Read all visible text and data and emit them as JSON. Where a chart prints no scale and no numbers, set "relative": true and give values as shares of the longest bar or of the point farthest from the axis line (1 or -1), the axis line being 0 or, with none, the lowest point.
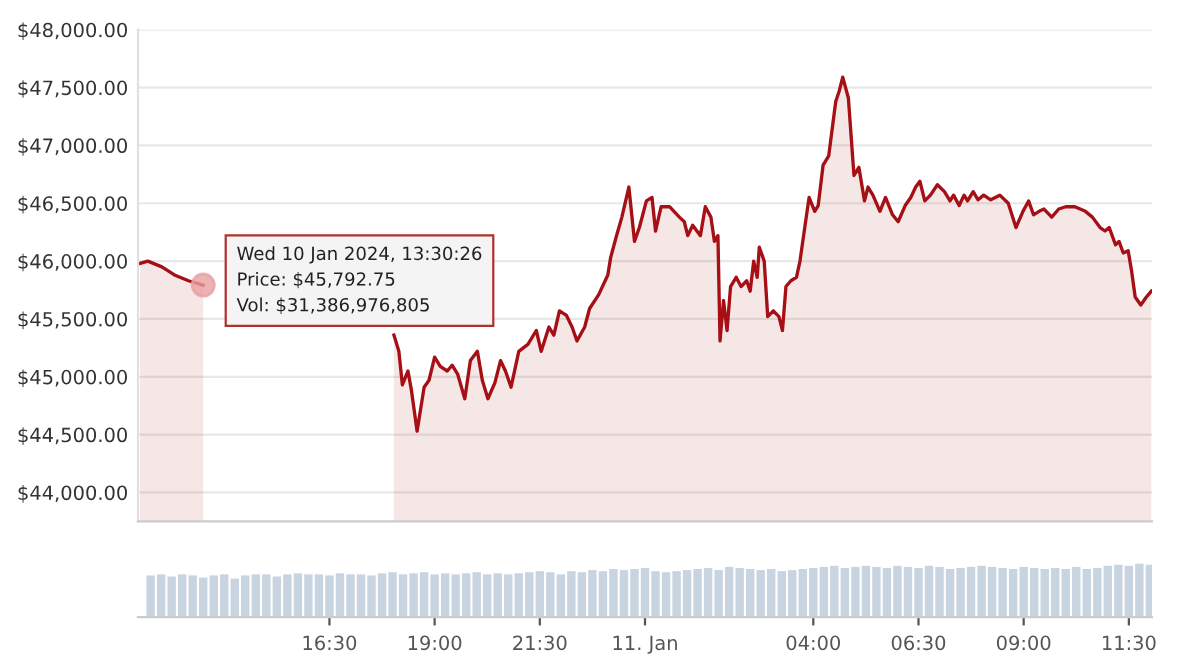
{
  "chart_data": [
    {
      "type": "area",
      "series": [
        {
          "color": "#a50f15",
          "x": [
            "2024-01-10T12:00",
            "2024-01-10T12:11",
            "2024-01-10T12:31",
            "2024-01-10T12:49",
            "2024-01-10T13:09",
            "2024-01-10T13:30",
            "2024-01-10T14:13",
            "2024-01-10T15:04",
            "2024-01-10T15:55",
            "2024-01-10T16:45",
            "2024-01-10T17:36",
            "2024-01-10T17:56",
            "2024-01-10T18:02",
            "2024-01-10T18:09",
            "2024-01-10T18:14",
            "2024-01-10T18:22",
            "2024-01-10T18:27",
            "2024-01-10T18:35",
            "2024-01-10T18:45",
            "2024-01-10T18:52",
            "2024-01-10T19:00",
            "2024-01-10T19:08",
            "2024-01-10T19:18",
            "2024-01-10T19:25",
            "2024-01-10T19:33",
            "2024-01-10T19:43",
            "2024-01-10T19:51",
            "2024-01-10T20:01",
            "2024-01-10T20:08",
            "2024-01-10T20:16",
            "2024-01-10T20:26",
            "2024-01-10T20:34",
            "2024-01-10T20:41",
            "2024-01-10T20:49",
            "2024-01-10T21:00",
            "2024-01-10T21:13",
            "2024-01-10T21:25",
            "2024-01-10T21:32",
            "2024-01-10T21:43",
            "2024-01-10T21:50",
            "2024-01-10T21:58",
            "2024-01-10T22:08",
            "2024-01-10T22:16",
            "2024-01-10T22:23",
            "2024-01-10T22:34",
            "2024-01-10T22:41",
            "2024-01-10T22:54",
            "2024-01-10T23:07",
            "2024-01-10T23:11",
            "2024-01-10T23:19",
            "2024-01-10T23:27",
            "2024-01-10T23:37",
            "2024-01-10T23:45",
            "2024-01-10T23:52",
            "2024-01-11T00:02",
            "2024-01-11T00:10",
            "2024-01-11T00:15",
            "2024-01-11T00:23",
            "2024-01-11T00:35",
            "2024-01-11T00:49",
            "2024-01-11T00:56",
            "2024-01-11T01:01",
            "2024-01-11T01:08",
            "2024-01-11T01:19",
            "2024-01-11T01:26",
            "2024-01-11T01:34",
            "2024-01-11T01:39",
            "2024-01-11T01:44",
            "2024-01-11T01:47",
            "2024-01-11T01:52",
            "2024-01-11T01:57",
            "2024-01-11T02:02",
            "2024-01-11T02:10",
            "2024-01-11T02:17",
            "2024-01-11T02:25",
            "2024-01-11T02:30",
            "2024-01-11T02:35",
            "2024-01-11T02:40",
            "2024-01-11T02:43",
            "2024-01-11T02:50",
            "2024-01-11T02:55",
            "2024-01-11T03:03",
            "2024-01-11T03:11",
            "2024-01-11T03:16",
            "2024-01-11T03:21",
            "2024-01-11T03:28",
            "2024-01-11T03:36",
            "2024-01-11T03:41",
            "2024-01-11T03:49",
            "2024-01-11T03:54",
            "2024-01-11T04:02",
            "2024-01-11T04:07",
            "2024-01-11T04:14",
            "2024-01-11T04:22",
            "2024-01-11T04:32",
            "2024-01-11T04:37",
            "2024-01-11T04:42",
            "2024-01-11T04:50",
            "2024-01-11T04:58",
            "2024-01-11T05:05",
            "2024-01-11T05:13",
            "2024-01-11T05:18",
            "2024-01-11T05:25",
            "2024-01-11T05:35",
            "2024-01-11T05:43",
            "2024-01-11T05:53",
            "2024-01-11T06:01",
            "2024-01-11T06:11",
            "2024-01-11T06:19",
            "2024-01-11T06:26",
            "2024-01-11T06:32",
            "2024-01-11T06:39",
            "2024-01-11T06:47",
            "2024-01-11T06:57",
            "2024-01-11T07:07",
            "2024-01-11T07:15",
            "2024-01-11T07:20",
            "2024-01-11T07:28",
            "2024-01-11T07:35",
            "2024-01-11T07:40",
            "2024-01-11T07:48",
            "2024-01-11T07:55",
            "2024-01-11T08:03",
            "2024-01-11T08:13",
            "2024-01-11T08:26",
            "2024-01-11T08:38",
            "2024-01-11T08:49",
            "2024-01-11T08:59",
            "2024-01-11T09:07",
            "2024-01-11T09:14",
            "2024-01-11T09:22",
            "2024-01-11T09:29",
            "2024-01-11T09:40",
            "2024-01-11T09:50",
            "2024-01-11T10:00",
            "2024-01-11T10:13",
            "2024-01-11T10:28",
            "2024-01-11T10:38",
            "2024-01-11T10:49",
            "2024-01-11T10:56",
            "2024-01-11T11:02",
            "2024-01-11T11:11",
            "2024-01-11T11:16",
            "2024-01-11T11:22",
            "2024-01-11T11:29",
            "2024-01-11T11:34",
            "2024-01-11T11:39",
            "2024-01-11T11:47",
            "2024-01-11T11:55",
            "2024-01-11T12:02"
          ],
          "values": [
            45980,
            46000,
            45950,
            45880,
            45830,
            45792.75,
            null,
            null,
            null,
            null,
            null,
            null,
            45360,
            45220,
            44930,
            45050,
            44880,
            44530,
            44910,
            44970,
            45170,
            45090,
            45050,
            45100,
            45020,
            44810,
            45140,
            45220,
            44970,
            44810,
            44950,
            45140,
            45050,
            44910,
            45220,
            45280,
            45400,
            45220,
            45430,
            45360,
            45570,
            45530,
            45430,
            45310,
            45430,
            45590,
            45710,
            45880,
            46030,
            46210,
            46380,
            46640,
            46170,
            46290,
            46520,
            46550,
            46260,
            46470,
            46470,
            46380,
            46340,
            46220,
            46310,
            46220,
            46470,
            46380,
            46170,
            46220,
            45310,
            45660,
            45400,
            45780,
            45860,
            45780,
            45830,
            45740,
            46000,
            45860,
            46120,
            46000,
            45520,
            45570,
            45520,
            45400,
            45780,
            45830,
            45860,
            46000,
            46340,
            46550,
            46430,
            46480,
            46830,
            46910,
            47380,
            47470,
            47590,
            47410,
            46740,
            46810,
            46520,
            46640,
            46570,
            46430,
            46550,
            46400,
            46340,
            46480,
            46550,
            46640,
            46690,
            46520,
            46570,
            46660,
            46600,
            46520,
            46570,
            46480,
            46570,
            46520,
            46600,
            46530,
            46570,
            46530,
            46570,
            46500,
            46290,
            46430,
            46520,
            46400,
            46430,
            46450,
            46380,
            46450,
            46470,
            46470,
            46430,
            46380,
            46290,
            46260,
            46290,
            46140,
            46170,
            46070,
            46090,
            45910,
            45690,
            45620,
            45690,
            45740
          ]
        }
      ],
      "xlim": [
        "2024-01-10T11:57",
        "2024-01-11T12:03"
      ],
      "ylim": [
        43750,
        48000
      ],
      "yticks": [
        {
          "value": 44000,
          "label": "$44,000.00"
        },
        {
          "value": 44500,
          "label": "$44,500.00"
        },
        {
          "value": 45000,
          "label": "$45,000.00"
        },
        {
          "value": 45500,
          "label": "$45,500.00"
        },
        {
          "value": 46000,
          "label": "$46,000.00"
        },
        {
          "value": 46500,
          "label": "$46,500.00"
        },
        {
          "value": 47000,
          "label": "$47,000.00"
        },
        {
          "value": 47500,
          "label": "$47,500.00"
        },
        {
          "value": 48000,
          "label": "$48,000.00"
        }
      ],
      "grid": "y",
      "tick_labels": "y",
      "annotations": [
        {
          "text": "Wed 10 Jan 2024, 13:30:26\nPrice: $45,792.75\nVol: $31,386,976,805",
          "x": "2024-01-10T13:30",
          "y": 45792.75
        }
      ]
    },
    {
      "type": "bar",
      "relative": true,
      "series": [
        {
          "color": "#c9d4e1",
          "x": [
            "2024-01-10T12:15",
            "2024-01-10T12:30",
            "2024-01-10T12:45",
            "2024-01-10T13:00",
            "2024-01-10T13:15",
            "2024-01-10T13:30",
            "2024-01-10T13:45",
            "2024-01-10T14:00",
            "2024-01-10T14:15",
            "2024-01-10T14:30",
            "2024-01-10T14:45",
            "2024-01-10T15:00",
            "2024-01-10T15:15",
            "2024-01-10T15:30",
            "2024-01-10T15:45",
            "2024-01-10T16:00",
            "2024-01-10T16:15",
            "2024-01-10T16:30",
            "2024-01-10T16:45",
            "2024-01-10T17:00",
            "2024-01-10T17:15",
            "2024-01-10T17:30",
            "2024-01-10T17:45",
            "2024-01-10T18:00",
            "2024-01-10T18:15",
            "2024-01-10T18:30",
            "2024-01-10T18:45",
            "2024-01-10T19:00",
            "2024-01-10T19:15",
            "2024-01-10T19:30",
            "2024-01-10T19:45",
            "2024-01-10T20:00",
            "2024-01-10T20:15",
            "2024-01-10T20:30",
            "2024-01-10T20:45",
            "2024-01-10T21:00",
            "2024-01-10T21:15",
            "2024-01-10T21:30",
            "2024-01-10T21:45",
            "2024-01-10T22:00",
            "2024-01-10T22:15",
            "2024-01-10T22:30",
            "2024-01-10T22:45",
            "2024-01-10T23:00",
            "2024-01-10T23:15",
            "2024-01-10T23:30",
            "2024-01-10T23:45",
            "2024-01-11T00:00",
            "2024-01-11T00:15",
            "2024-01-11T00:30",
            "2024-01-11T00:45",
            "2024-01-11T01:00",
            "2024-01-11T01:15",
            "2024-01-11T01:30",
            "2024-01-11T01:45",
            "2024-01-11T02:00",
            "2024-01-11T02:15",
            "2024-01-11T02:30",
            "2024-01-11T02:45",
            "2024-01-11T03:00",
            "2024-01-11T03:15",
            "2024-01-11T03:30",
            "2024-01-11T03:45",
            "2024-01-11T04:00",
            "2024-01-11T04:15",
            "2024-01-11T04:30",
            "2024-01-11T04:45",
            "2024-01-11T05:00",
            "2024-01-11T05:15",
            "2024-01-11T05:30",
            "2024-01-11T05:45",
            "2024-01-11T06:00",
            "2024-01-11T06:15",
            "2024-01-11T06:30",
            "2024-01-11T06:45",
            "2024-01-11T07:00",
            "2024-01-11T07:15",
            "2024-01-11T07:30",
            "2024-01-11T07:45",
            "2024-01-11T08:00",
            "2024-01-11T08:15",
            "2024-01-11T08:30",
            "2024-01-11T08:45",
            "2024-01-11T09:00",
            "2024-01-11T09:15",
            "2024-01-11T09:30",
            "2024-01-11T09:45",
            "2024-01-11T10:00",
            "2024-01-11T10:15",
            "2024-01-11T10:30",
            "2024-01-11T10:45",
            "2024-01-11T11:00",
            "2024-01-11T11:15",
            "2024-01-11T11:30",
            "2024-01-11T11:45",
            "2024-01-11T12:00"
          ],
          "values": [
            0.78,
            0.8,
            0.76,
            0.8,
            0.78,
            0.74,
            0.78,
            0.8,
            0.72,
            0.78,
            0.8,
            0.8,
            0.76,
            0.8,
            0.82,
            0.8,
            0.8,
            0.78,
            0.82,
            0.8,
            0.8,
            0.78,
            0.82,
            0.84,
            0.8,
            0.82,
            0.84,
            0.8,
            0.82,
            0.8,
            0.82,
            0.84,
            0.8,
            0.82,
            0.8,
            0.82,
            0.84,
            0.86,
            0.84,
            0.8,
            0.86,
            0.84,
            0.88,
            0.86,
            0.9,
            0.88,
            0.9,
            0.92,
            0.86,
            0.84,
            0.86,
            0.88,
            0.9,
            0.92,
            0.88,
            0.94,
            0.92,
            0.9,
            0.88,
            0.9,
            0.86,
            0.88,
            0.9,
            0.92,
            0.94,
            0.96,
            0.92,
            0.94,
            0.96,
            0.94,
            0.92,
            0.96,
            0.94,
            0.92,
            0.96,
            0.94,
            0.9,
            0.92,
            0.94,
            0.96,
            0.94,
            0.92,
            0.9,
            0.94,
            0.92,
            0.9,
            0.92,
            0.9,
            0.94,
            0.9,
            0.92,
            0.96,
            0.98,
            0.96,
            1.0,
            0.98
          ]
        }
      ],
      "xlim": [
        "2024-01-10T11:57",
        "2024-01-11T12:03"
      ],
      "xticks": [
        {
          "value": "2024-01-10T16:30",
          "label": "16:30"
        },
        {
          "value": "2024-01-10T19:00",
          "label": "19:00"
        },
        {
          "value": "2024-01-10T21:30",
          "label": "21:30"
        },
        {
          "value": "2024-01-11T00:00",
          "label": "11. Jan"
        },
        {
          "value": "2024-01-11T04:00",
          "label": "04:00"
        },
        {
          "value": "2024-01-11T06:30",
          "label": "06:30"
        },
        {
          "value": "2024-01-11T09:00",
          "label": "09:00"
        },
        {
          "value": "2024-01-11T11:30",
          "label": "11:30"
        }
      ],
      "tick_labels": "x"
    }
  ]
}
